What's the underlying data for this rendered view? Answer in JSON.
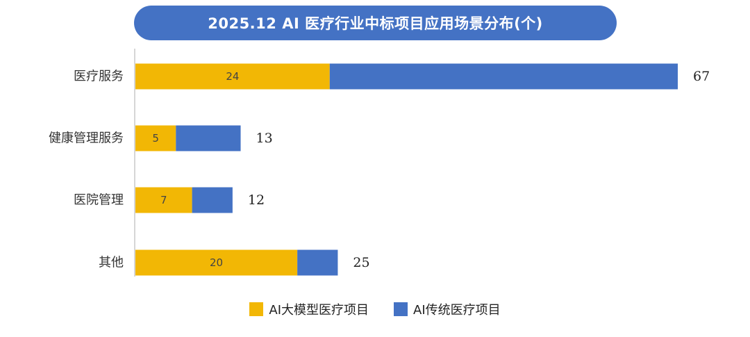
{
  "chart_data": {
    "type": "bar",
    "orientation": "horizontal",
    "stacked": true,
    "title": "2025.12 AI 医疗行业中标项目应用场景分布(个)",
    "categories": [
      "医疗服务",
      "健康管理服务",
      "医院管理",
      "其他"
    ],
    "series": [
      {
        "name": "AI大模型医疗项目",
        "values": [
          24,
          5,
          7,
          20
        ],
        "color": "#f2b705"
      },
      {
        "name": "AI传统医疗项目",
        "values": [
          43,
          8,
          5,
          5
        ],
        "color": "#4472c4"
      }
    ],
    "totals": [
      67,
      13,
      12,
      25
    ],
    "xlim": [
      0,
      67
    ],
    "grid": false,
    "legend_position": "bottom"
  }
}
